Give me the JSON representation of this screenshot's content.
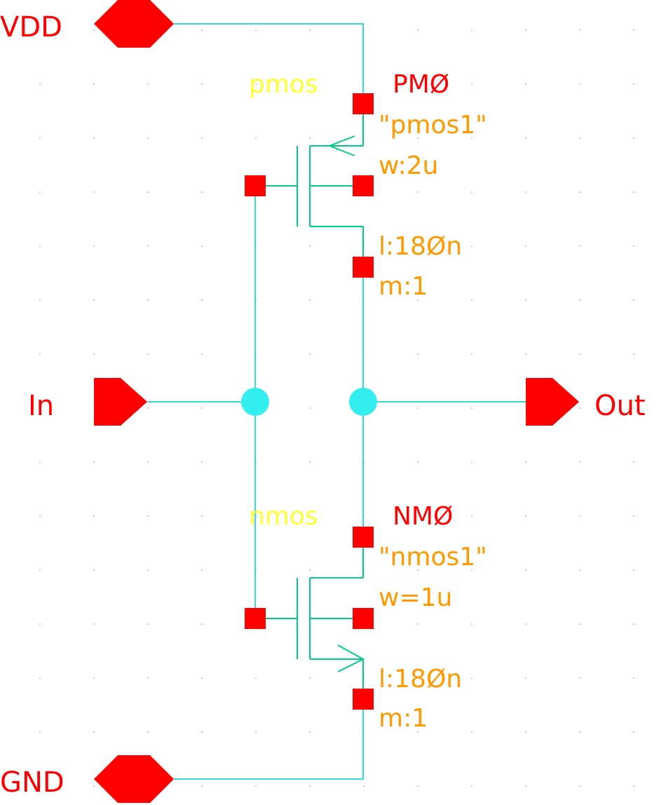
{
  "pins": {
    "vdd": "VDD",
    "gnd": "GND",
    "in": "In",
    "out": "Out"
  },
  "pmos": {
    "cell": "pmos",
    "instance": "PMØ",
    "model": "\"pmos1\"",
    "w": "w:2u",
    "l": "l:18Øn",
    "m": "m:1"
  },
  "nmos": {
    "cell": "nmos",
    "instance": "NMØ",
    "model": "\"nmos1\"",
    "w": "w=1u",
    "l": "l:18Øn",
    "m": "m:1"
  },
  "colors": {
    "background": "#ffffff",
    "wire": "#33dddd",
    "device": "#00cc88",
    "pin": "#ff0000",
    "instance_name": "#ff0000",
    "cell_name": "#ffff33",
    "parameters": "#ff9900"
  }
}
